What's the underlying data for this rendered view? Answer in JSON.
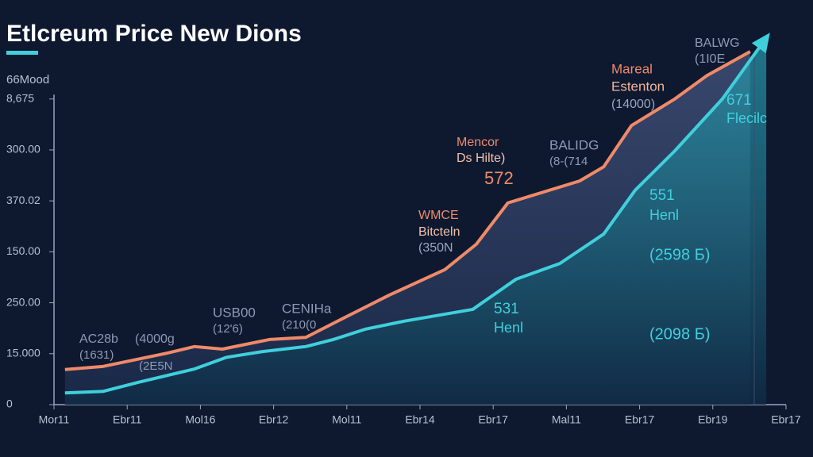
{
  "chart_data": {
    "type": "area-line",
    "title": "Etlcreum Price New Dions",
    "y_label": "66Mood",
    "xlim": [
      0,
      10
    ],
    "xticks": [
      {
        "value": 0,
        "label": "Mor11"
      },
      {
        "value": 1,
        "label": "Ebr11"
      },
      {
        "value": 2,
        "label": "Mol16"
      },
      {
        "value": 3,
        "label": "Ebr12"
      },
      {
        "value": 4,
        "label": "Mol11"
      },
      {
        "value": 5,
        "label": "Ebr14"
      },
      {
        "value": 6,
        "label": "Ebr17"
      },
      {
        "value": 7,
        "label": "Mal11"
      },
      {
        "value": 8,
        "label": "Ebr17"
      },
      {
        "value": 9,
        "label": "Ebr19"
      },
      {
        "value": 10,
        "label": "Ebr17"
      }
    ],
    "ylim": [
      0,
      7.3
    ],
    "yticks": [
      0,
      {
        "value": 1,
        "label": "15.000"
      },
      {
        "value": 2,
        "label": "250.00"
      },
      {
        "value": 3,
        "label": "150.00"
      },
      {
        "value": 4,
        "label": "370.02"
      },
      {
        "value": 5,
        "label": "300.00"
      },
      {
        "value": 6,
        "label": "8,675"
      }
    ],
    "series": [
      {
        "color": "#f08a68",
        "x": [
          0.15,
          0.67,
          1.54,
          1.92,
          2.3,
          2.95,
          3.44,
          3.93,
          4.58,
          5.34,
          5.77,
          6.2,
          7.18,
          7.51,
          7.89,
          8.48,
          8.92,
          9.51
        ],
        "values": [
          0.69,
          0.75,
          1.01,
          1.14,
          1.09,
          1.28,
          1.32,
          1.68,
          2.15,
          2.65,
          3.15,
          3.96,
          4.39,
          4.67,
          5.48,
          6.0,
          6.46,
          6.93
        ]
      },
      {
        "color": "#3fd0dc",
        "x": [
          0.15,
          0.67,
          1.16,
          1.92,
          2.36,
          2.84,
          3.44,
          3.82,
          4.25,
          4.79,
          5.72,
          6.31,
          6.91,
          7.51,
          7.94,
          8.48,
          9.13,
          9.73
        ],
        "values": [
          0.23,
          0.26,
          0.44,
          0.7,
          0.93,
          1.04,
          1.14,
          1.28,
          1.48,
          1.64,
          1.87,
          2.46,
          2.77,
          3.35,
          4.21,
          4.98,
          6.0,
          7.2
        ]
      }
    ],
    "annotations": [
      {
        "text": "Mareal",
        "color": "#f08a68"
      },
      {
        "text": "Estenton",
        "color": "#f3b59a"
      },
      {
        "text": "(14000)",
        "color": "#9aa6bd"
      },
      {
        "text": "Mencor",
        "color": "#f08a68"
      },
      {
        "text": "Ds Hilte)",
        "color": "#f3c3ad"
      },
      {
        "text": "572",
        "color": "#f08a68"
      },
      {
        "text": "WMCE",
        "color": "#f08a68"
      },
      {
        "text": "Bitcteln",
        "color": "#f3c3ad"
      },
      {
        "text": "(350N",
        "color": "#9aa6bd"
      },
      {
        "text": "BALIDG",
        "color": "#8d9ab3"
      },
      {
        "text": "(8-(714",
        "color": "#8d9ab3"
      },
      {
        "text": "BALWG",
        "color": "#8d9ab3"
      },
      {
        "text": "(1I0E",
        "color": "#8d9ab3"
      },
      {
        "text": "671",
        "color": "#3fd0dc"
      },
      {
        "text": "Flecilc",
        "color": "#3fd0dc"
      },
      {
        "text": "551",
        "color": "#3fd0dc"
      },
      {
        "text": "Henl",
        "color": "#3fd0dc"
      },
      {
        "text": "(2598 Б)",
        "color": "#3fd0dc"
      },
      {
        "text": "531",
        "color": "#3fd0dc"
      },
      {
        "text": "Henl",
        "color": "#3fd0dc"
      },
      {
        "text": "(2098 Б)",
        "color": "#3fd0dc"
      },
      {
        "text": "CENIHa",
        "color": "#8d9ab3"
      },
      {
        "text": "(210(0",
        "color": "#8d9ab3"
      },
      {
        "text": "USB00",
        "color": "#8d9ab3"
      },
      {
        "text": "(12'6)",
        "color": "#8d9ab3"
      },
      {
        "text": "AC28b",
        "color": "#8d9ab3"
      },
      {
        "text": "(1631)",
        "color": "#8d9ab3"
      },
      {
        "text": "(4000g",
        "color": "#8d9ab3"
      },
      {
        "text": "(2E5N",
        "color": "#8d9ab3"
      }
    ]
  }
}
